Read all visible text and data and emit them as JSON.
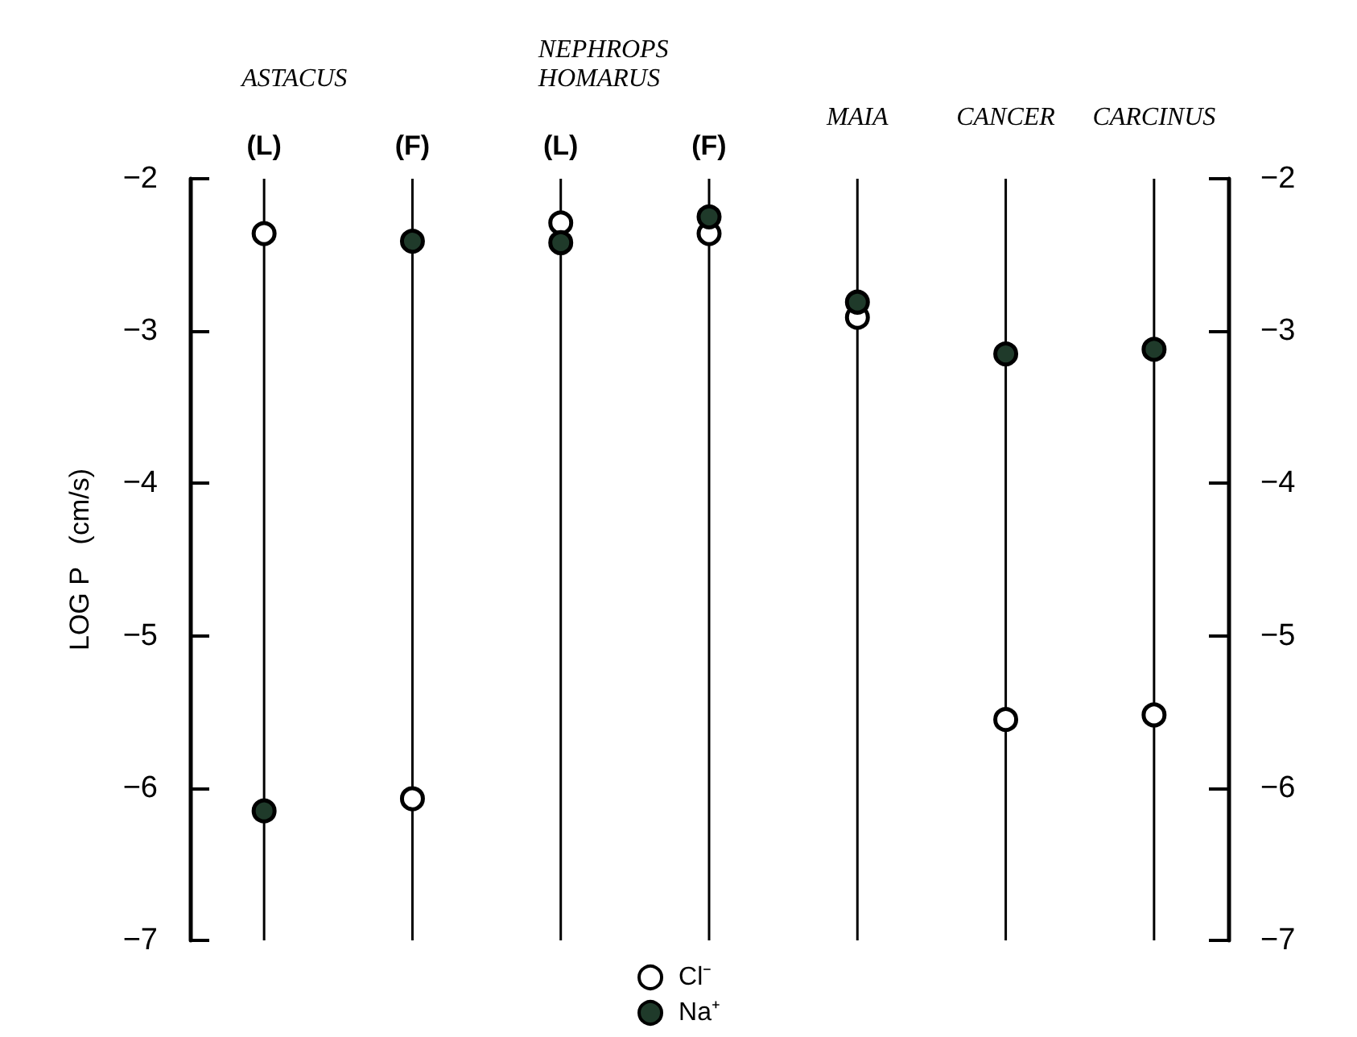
{
  "chart_data": {
    "type": "scatter",
    "ylabel": "LOG P   (cm/s)",
    "categories": [
      "(L)",
      "(F)",
      "(L)",
      "(F)",
      "MAIA",
      "CANCER",
      "CARCINUS"
    ],
    "annotations": [
      "ASTACUS",
      "NEPHROPS\nHOMARUS"
    ],
    "series": [
      {
        "name": "Cl⁻",
        "color": "#ffffff",
        "values": [
          -2.36,
          -6.07,
          -2.29,
          -2.36,
          -2.91,
          -5.55,
          -5.52
        ]
      },
      {
        "name": "Na⁺",
        "color": "#1f3a2a",
        "values": [
          -6.15,
          -2.41,
          -2.42,
          -2.25,
          -2.81,
          -3.15,
          -3.12
        ]
      }
    ],
    "ylim": [
      -7,
      -2
    ],
    "yticks": [
      -7,
      -6,
      -5,
      -4,
      -3,
      -2
    ],
    "y2lim": [
      -7,
      -2
    ],
    "y2ticks": [
      -7,
      -6,
      -5,
      -4,
      -3,
      -2
    ],
    "grid": "x",
    "legend": "bottom",
    "marker": "circle"
  }
}
